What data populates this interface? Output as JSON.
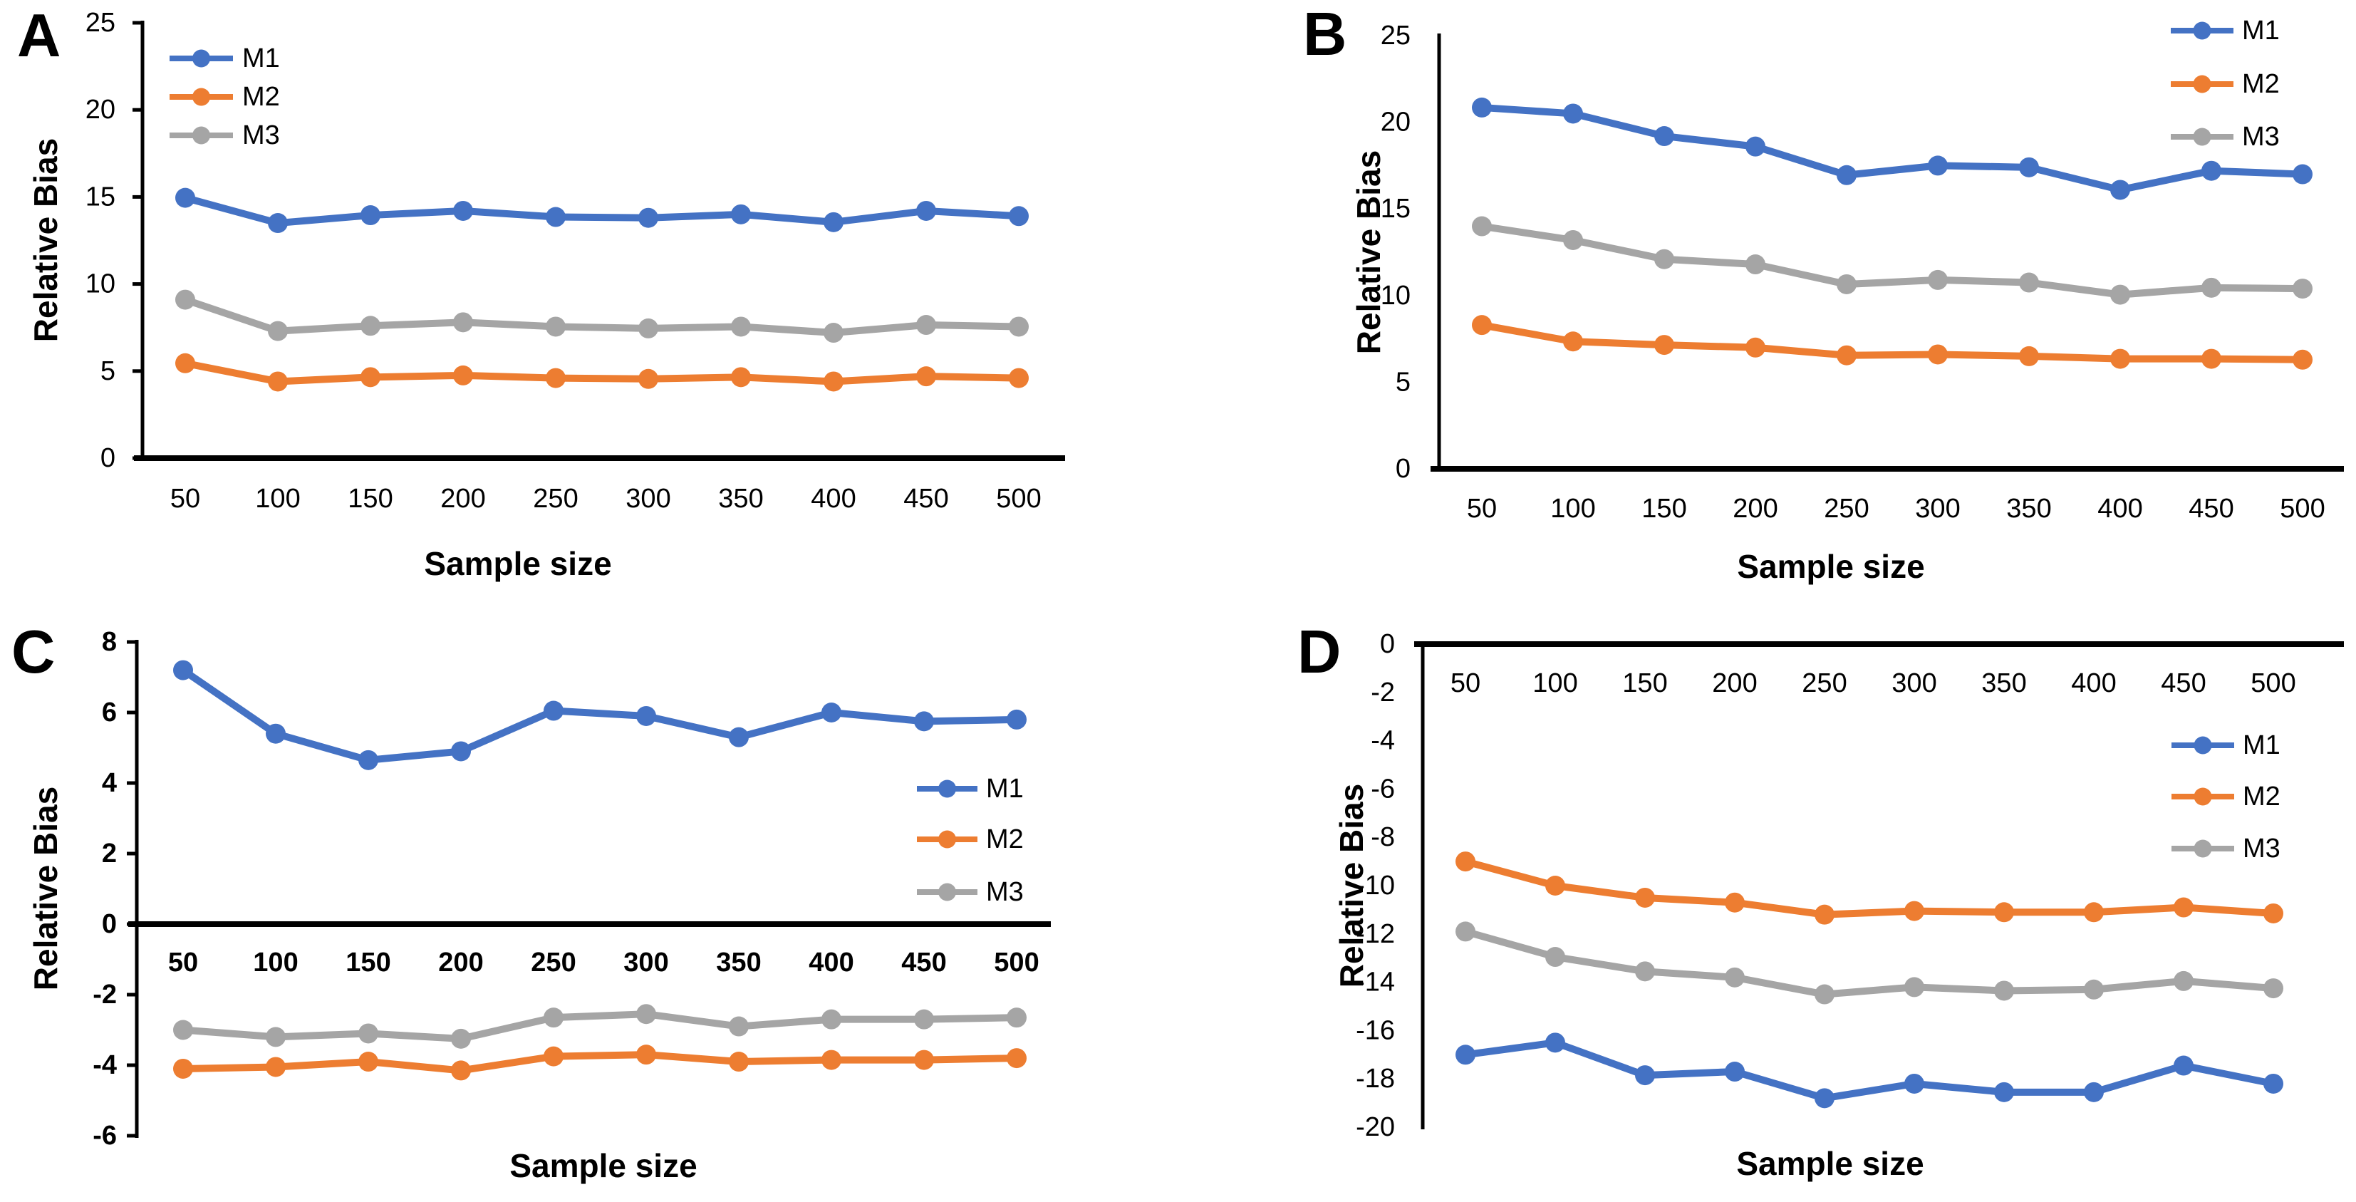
{
  "series_colors": {
    "M1": "#4472C4",
    "M2": "#ED7D31",
    "M3": "#A5A5A5"
  },
  "axis_color": "#000000",
  "background_color": "#FFFFFF",
  "chart_data": [
    {
      "panel_label": "A",
      "type": "line",
      "title": "",
      "xlabel": "Sample size",
      "ylabel": "Relative Bias",
      "categories": [
        50,
        100,
        150,
        200,
        250,
        300,
        350,
        400,
        450,
        500
      ],
      "ylim": [
        0,
        25
      ],
      "yticks": [
        0,
        5,
        10,
        15,
        20,
        25
      ],
      "grid": false,
      "legend_position": "top-left",
      "legend_entries": [
        "M1",
        "M2",
        "M3"
      ],
      "series": [
        {
          "name": "M1",
          "color": "#4472C4",
          "values": [
            14.95,
            13.5,
            13.95,
            14.2,
            13.85,
            13.8,
            14.0,
            13.55,
            14.2,
            13.9
          ]
        },
        {
          "name": "M2",
          "color": "#ED7D31",
          "values": [
            5.45,
            4.4,
            4.65,
            4.75,
            4.6,
            4.55,
            4.65,
            4.4,
            4.7,
            4.6
          ]
        },
        {
          "name": "M3",
          "color": "#A5A5A5",
          "values": [
            9.1,
            7.3,
            7.6,
            7.8,
            7.55,
            7.45,
            7.55,
            7.2,
            7.65,
            7.55
          ]
        }
      ]
    },
    {
      "panel_label": "B",
      "type": "line",
      "title": "",
      "xlabel": "Sample size",
      "ylabel": "Relative Bias",
      "categories": [
        50,
        100,
        150,
        200,
        250,
        300,
        350,
        400,
        450,
        500
      ],
      "ylim": [
        0,
        25
      ],
      "yticks": [
        0,
        5,
        10,
        15,
        20,
        25
      ],
      "grid": false,
      "legend_position": "top-right",
      "legend_entries": [
        "M1",
        "M2",
        "M3"
      ],
      "series": [
        {
          "name": "M1",
          "color": "#4472C4",
          "values": [
            20.85,
            20.5,
            19.2,
            18.6,
            16.95,
            17.5,
            17.4,
            16.1,
            17.2,
            17.0
          ]
        },
        {
          "name": "M2",
          "color": "#ED7D31",
          "values": [
            8.3,
            7.35,
            7.15,
            7.0,
            6.55,
            6.6,
            6.5,
            6.35,
            6.35,
            6.3
          ]
        },
        {
          "name": "M3",
          "color": "#A5A5A5",
          "values": [
            14.0,
            13.2,
            12.1,
            11.8,
            10.65,
            10.9,
            10.75,
            10.05,
            10.45,
            10.4
          ]
        }
      ]
    },
    {
      "panel_label": "C",
      "type": "line",
      "title": "",
      "xlabel": "Sample size",
      "ylabel": "Relative Bias",
      "categories": [
        50,
        100,
        150,
        200,
        250,
        300,
        350,
        400,
        450,
        500
      ],
      "ylim": [
        -6,
        8
      ],
      "yticks": [
        8,
        6,
        4,
        2,
        0,
        -2,
        -4,
        -6
      ],
      "grid": false,
      "legend_position": "middle-right",
      "legend_entries": [
        "M1",
        "M2",
        "M3"
      ],
      "series": [
        {
          "name": "M1",
          "color": "#4472C4",
          "values": [
            7.2,
            5.4,
            4.65,
            4.9,
            6.05,
            5.9,
            5.3,
            6.0,
            5.75,
            5.8
          ]
        },
        {
          "name": "M2",
          "color": "#ED7D31",
          "values": [
            -4.1,
            -4.05,
            -3.9,
            -4.15,
            -3.75,
            -3.7,
            -3.9,
            -3.85,
            -3.85,
            -3.8
          ]
        },
        {
          "name": "M3",
          "color": "#A5A5A5",
          "values": [
            -3.0,
            -3.2,
            -3.1,
            -3.25,
            -2.65,
            -2.55,
            -2.9,
            -2.7,
            -2.7,
            -2.65
          ]
        }
      ]
    },
    {
      "panel_label": "D",
      "type": "line",
      "title": "",
      "xlabel": "Sample size",
      "ylabel": "Relative Bias",
      "categories": [
        50,
        100,
        150,
        200,
        250,
        300,
        350,
        400,
        450,
        500
      ],
      "ylim": [
        -20,
        0
      ],
      "yticks": [
        0,
        -2,
        -4,
        -6,
        -8,
        -10,
        -12,
        -14,
        -16,
        -18,
        -20
      ],
      "grid": false,
      "legend_position": "right-upper",
      "legend_entries": [
        "M1",
        "M2",
        "M3"
      ],
      "series": [
        {
          "name": "M1",
          "color": "#4472C4",
          "values": [
            -17.0,
            -16.5,
            -17.85,
            -17.7,
            -18.8,
            -18.2,
            -18.55,
            -18.55,
            -17.45,
            -18.2
          ]
        },
        {
          "name": "M2",
          "color": "#ED7D31",
          "values": [
            -9.0,
            -10.0,
            -10.5,
            -10.7,
            -11.2,
            -11.05,
            -11.1,
            -11.1,
            -10.9,
            -11.15
          ]
        },
        {
          "name": "M3",
          "color": "#A5A5A5",
          "values": [
            -11.9,
            -12.95,
            -13.55,
            -13.8,
            -14.5,
            -14.2,
            -14.35,
            -14.3,
            -13.95,
            -14.25
          ]
        }
      ]
    }
  ]
}
